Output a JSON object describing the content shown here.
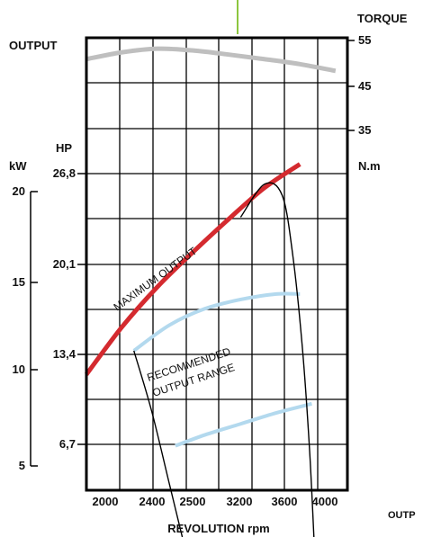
{
  "chart_data": {
    "type": "line",
    "xlabel": "REVOLUTION rpm",
    "x_tick_labels": [
      "2000",
      "2400",
      "2500",
      "3200",
      "3600",
      "4000"
    ],
    "left_axis_title": "OUTPUT",
    "hp_unit": "HP",
    "hp_ticks": [
      "26,8",
      "20,1",
      "13,4",
      "6,7"
    ],
    "kw_unit": "kW",
    "kw_ticks": [
      "20",
      "15",
      "10",
      "5"
    ],
    "torque_title": "TORQUE",
    "torque_unit": "N.m",
    "torque_ticks": [
      "55",
      "45",
      "35"
    ],
    "cutoff_text": "OUTP",
    "annotations": {
      "max_output": "MAXIMUM OUTPUT",
      "recommended_line1": "RECOMMENDED",
      "recommended_line2": "OUTPUT RANGE"
    },
    "colors": {
      "maximum_output": "#d42a2f",
      "recommended_output_range": "#b3d9ee",
      "torque": "#bfbfbf",
      "accent_top": "#8dc63f"
    },
    "series": [
      {
        "key": "torque",
        "unit": "N.m",
        "x": [
          1800,
          2100,
          2400,
          2700,
          3000,
          3300,
          3600,
          3900
        ],
        "y": [
          50.3,
          51.8,
          52.6,
          52.2,
          51.3,
          50.3,
          49.2,
          47.7
        ]
      },
      {
        "key": "maximum_output",
        "unit": "kW",
        "x": [
          1800,
          2100,
          2400,
          2700,
          3000,
          3300,
          3600
        ],
        "y": [
          10.0,
          12.6,
          14.8,
          16.7,
          18.5,
          20.2,
          21.5
        ]
      },
      {
        "key": "recommended_high",
        "unit": "kW",
        "x": [
          2200,
          2500,
          2800,
          3100,
          3400,
          3600
        ],
        "y": [
          11.3,
          12.7,
          13.6,
          14.1,
          14.4,
          14.4
        ]
      },
      {
        "key": "recommended_low",
        "unit": "kW",
        "x": [
          2550,
          2800,
          3100,
          3400,
          3700
        ],
        "y": [
          6.1,
          6.7,
          7.3,
          7.9,
          8.4
        ]
      },
      {
        "key": "propeller_curve_1",
        "unit": "kW",
        "x": [
          2200,
          2350,
          2500,
          2620
        ],
        "y": [
          11.3,
          8.0,
          4.0,
          0.8
        ]
      },
      {
        "key": "propeller_curve_2",
        "unit": "kW",
        "x": [
          3100,
          3300,
          3450,
          3540,
          3620,
          3680,
          3720
        ],
        "y": [
          18.6,
          20.4,
          19.8,
          16.5,
          11.5,
          6.0,
          0.8
        ]
      }
    ]
  }
}
